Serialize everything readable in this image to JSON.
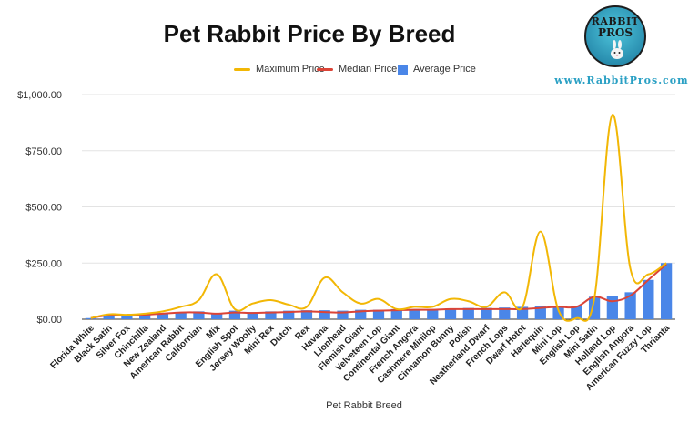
{
  "chart_data": {
    "type": "bar",
    "title": "Pet Rabbit Price By Breed",
    "xlabel": "Pet Rabbit Breed",
    "ylabel": "",
    "ylim": [
      0,
      1000
    ],
    "yticks": [
      0,
      250,
      500,
      750,
      1000
    ],
    "ytick_labels": [
      "$0.00",
      "$250.00",
      "$500.00",
      "$750.00",
      "$1,000.00"
    ],
    "grid": true,
    "legend_position": "top",
    "categories": [
      "Florida White",
      "Black Satin",
      "Silver Fox",
      "Chinchilla",
      "New Zealand",
      "American Rabbit",
      "Californian",
      "Mix",
      "English Spot",
      "Jersey Woolly",
      "Mini Rex",
      "Dutch",
      "Rex",
      "Havana",
      "Lionhead",
      "Flemish Giant",
      "Velveteen Lop",
      "Continental Giant",
      "French Angora",
      "Cashmere Minilop",
      "Cinnamon Bunny",
      "Polish",
      "Neatherland Dwarf",
      "French Lops",
      "Dwarf Hotot",
      "Harlequin",
      "Mini Lop",
      "English Lop",
      "Mini Satin",
      "Holland Lop",
      "English Angora",
      "American Fuzzy Lop",
      "Thrianta"
    ],
    "series": [
      {
        "name": "Maximum Price",
        "kind": "line",
        "color": "#f2b705",
        "values": [
          5,
          22,
          20,
          25,
          35,
          55,
          85,
          200,
          45,
          70,
          85,
          65,
          55,
          185,
          120,
          70,
          90,
          45,
          55,
          55,
          90,
          80,
          55,
          120,
          55,
          390,
          40,
          5,
          95,
          910,
          225,
          200,
          250
        ]
      },
      {
        "name": "Median Price",
        "kind": "line",
        "color": "#db4437",
        "values": [
          5,
          18,
          18,
          20,
          25,
          30,
          30,
          25,
          30,
          28,
          30,
          32,
          35,
          32,
          30,
          35,
          38,
          40,
          42,
          42,
          45,
          45,
          45,
          45,
          45,
          50,
          55,
          55,
          100,
          80,
          105,
          175,
          245
        ]
      },
      {
        "name": "Average Price",
        "kind": "bar",
        "color": "#4a86e8",
        "values": [
          5,
          20,
          18,
          22,
          28,
          32,
          35,
          25,
          38,
          32,
          35,
          38,
          40,
          40,
          38,
          42,
          42,
          45,
          45,
          45,
          48,
          50,
          50,
          52,
          55,
          58,
          60,
          60,
          100,
          105,
          120,
          175,
          250
        ]
      }
    ]
  },
  "logo": {
    "line1": "RABBIT",
    "line2": "PROS",
    "url": "www.RabbitPros.com"
  }
}
